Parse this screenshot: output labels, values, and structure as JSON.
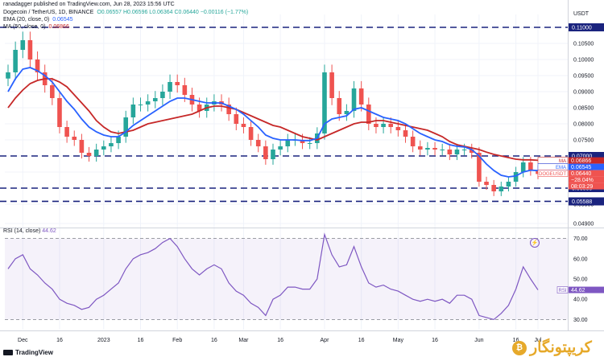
{
  "header": {
    "published": "ranadagger published on TradingView.com, Jun 28, 2023 15:56 UTC",
    "pair": "Dogecoin / TetherUS, 1D, BINANCE",
    "ohlc": "O0.06557 H0.06596 L0.06364 C0.06440 −0.00116 (−1.77%)",
    "ema_label": "EMA (20, close, 0)",
    "ema_value": "0.06545",
    "ma_label": "MA (50, close, 0)",
    "ma_value": "0.06866"
  },
  "axis_unit": "USDT",
  "rsi": {
    "label": "RSI (14, close)",
    "value": "44.62"
  },
  "footer": {
    "logo": "TradingView"
  },
  "brand": {
    "name": "کریپتونگار"
  },
  "colors": {
    "up": "#26a69a",
    "down": "#ef5350",
    "ema": "#2962ff",
    "ma": "#c62828",
    "level": "#1a237e",
    "rsi": "#7e57c2"
  },
  "chart_data": [
    {
      "type": "candlestick",
      "title": "Dogecoin / TetherUS, 1D, BINANCE",
      "ylabel": "USDT",
      "ylim": [
        0.048,
        0.114
      ],
      "y_ticks": [
        "0.04900",
        "0.05500",
        "0.06000",
        "0.06500",
        "0.07000",
        "0.07500",
        "0.08000",
        "0.08500",
        "0.09000",
        "0.09500",
        "0.10000",
        "0.10500",
        "0.11000"
      ],
      "x_ticks": [
        "Dec",
        "16",
        "2023",
        "16",
        "Feb",
        "16",
        "Mar",
        "16",
        "Apr",
        "16",
        "May",
        "16",
        "Jun",
        "16",
        "Jul"
      ],
      "horizontal_levels": [
        {
          "value": 0.11,
          "label": "0.11000"
        },
        {
          "value": 0.07,
          "label": "0.07000"
        },
        {
          "value": 0.06,
          "label": "0.06000"
        },
        {
          "value": 0.05588,
          "label": "0.05588"
        }
      ],
      "price_labels": [
        {
          "tag": "MA",
          "value": "0.06866"
        },
        {
          "tag": "EMA",
          "value": "0.06545"
        },
        {
          "tag": "DOGEUSDT",
          "value": "0.06440"
        },
        {
          "tag": "",
          "value": "−28.04%"
        },
        {
          "tag": "",
          "value": "08:03:29"
        }
      ],
      "series": [
        {
          "name": "DOGEUSDT close",
          "x": [
            "Nov 25",
            "Nov 28",
            "Dec 1",
            "Dec 4",
            "Dec 7",
            "Dec 10",
            "Dec 13",
            "Dec 16",
            "Dec 19",
            "Dec 22",
            "Dec 25",
            "Dec 28",
            "Dec 31",
            "Jan 3",
            "Jan 6",
            "Jan 9",
            "Jan 12",
            "Jan 15",
            "Jan 18",
            "Jan 21",
            "Jan 24",
            "Jan 27",
            "Jan 30",
            "Feb 2",
            "Feb 5",
            "Feb 8",
            "Feb 11",
            "Feb 14",
            "Feb 17",
            "Feb 20",
            "Feb 23",
            "Feb 26",
            "Mar 1",
            "Mar 4",
            "Mar 7",
            "Mar 10",
            "Mar 13",
            "Mar 16",
            "Mar 19",
            "Mar 22",
            "Mar 25",
            "Mar 28",
            "Mar 31",
            "Apr 3",
            "Apr 6",
            "Apr 9",
            "Apr 12",
            "Apr 15",
            "Apr 18",
            "Apr 21",
            "Apr 24",
            "Apr 27",
            "Apr 30",
            "May 3",
            "May 6",
            "May 9",
            "May 12",
            "May 15",
            "May 18",
            "May 21",
            "May 24",
            "May 27",
            "May 30",
            "Jun 2",
            "Jun 5",
            "Jun 8",
            "Jun 11",
            "Jun 14",
            "Jun 17",
            "Jun 20",
            "Jun 23",
            "Jun 26",
            "Jun 28"
          ],
          "values": [
            0.096,
            0.103,
            0.106,
            0.1,
            0.096,
            0.092,
            0.088,
            0.079,
            0.076,
            0.075,
            0.071,
            0.07,
            0.072,
            0.073,
            0.074,
            0.076,
            0.082,
            0.086,
            0.086,
            0.087,
            0.088,
            0.09,
            0.093,
            0.092,
            0.089,
            0.086,
            0.084,
            0.086,
            0.087,
            0.086,
            0.083,
            0.08,
            0.079,
            0.075,
            0.073,
            0.069,
            0.072,
            0.073,
            0.075,
            0.075,
            0.074,
            0.074,
            0.077,
            0.096,
            0.088,
            0.083,
            0.084,
            0.091,
            0.086,
            0.08,
            0.079,
            0.08,
            0.079,
            0.078,
            0.076,
            0.073,
            0.072,
            0.0725,
            0.072,
            0.072,
            0.0705,
            0.072,
            0.072,
            0.071,
            0.062,
            0.061,
            0.059,
            0.0605,
            0.062,
            0.065,
            0.068,
            0.0655,
            0.0644
          ]
        },
        {
          "name": "EMA (20, close, 0)",
          "values": [
            0.09,
            0.094,
            0.097,
            0.0975,
            0.0965,
            0.095,
            0.093,
            0.09,
            0.087,
            0.0845,
            0.0815,
            0.079,
            0.0775,
            0.0765,
            0.076,
            0.076,
            0.0775,
            0.0795,
            0.081,
            0.0825,
            0.084,
            0.0855,
            0.087,
            0.088,
            0.088,
            0.0875,
            0.087,
            0.0865,
            0.0865,
            0.0865,
            0.0855,
            0.0845,
            0.083,
            0.081,
            0.079,
            0.0765,
            0.0755,
            0.075,
            0.075,
            0.075,
            0.0748,
            0.0748,
            0.0755,
            0.08,
            0.0815,
            0.082,
            0.0825,
            0.0845,
            0.085,
            0.084,
            0.083,
            0.082,
            0.0815,
            0.081,
            0.08,
            0.0785,
            0.077,
            0.076,
            0.075,
            0.0745,
            0.0735,
            0.073,
            0.0728,
            0.072,
            0.07,
            0.0675,
            0.0655,
            0.064,
            0.0635,
            0.0638,
            0.065,
            0.0656,
            0.06545
          ]
        },
        {
          "name": "MA (50, close, 0)",
          "values": [
            0.085,
            0.088,
            0.0905,
            0.0925,
            0.0935,
            0.094,
            0.094,
            0.093,
            0.0915,
            0.089,
            0.0865,
            0.084,
            0.081,
            0.079,
            0.0775,
            0.077,
            0.0775,
            0.078,
            0.079,
            0.08,
            0.0805,
            0.081,
            0.0815,
            0.082,
            0.0825,
            0.083,
            0.084,
            0.085,
            0.0855,
            0.0855,
            0.085,
            0.0845,
            0.0835,
            0.0825,
            0.0815,
            0.0805,
            0.0795,
            0.079,
            0.078,
            0.077,
            0.076,
            0.0755,
            0.075,
            0.076,
            0.077,
            0.078,
            0.079,
            0.08,
            0.0805,
            0.0805,
            0.081,
            0.081,
            0.0805,
            0.08,
            0.0795,
            0.079,
            0.0785,
            0.078,
            0.077,
            0.076,
            0.0745,
            0.0735,
            0.073,
            0.0725,
            0.072,
            0.0712,
            0.0705,
            0.07,
            0.0695,
            0.069,
            0.0688,
            0.0688,
            0.06866
          ]
        }
      ]
    },
    {
      "type": "line",
      "title": "RSI (14, close)",
      "ylim": [
        25,
        75
      ],
      "y_ticks": [
        "70.00",
        "60.00",
        "50.00",
        "40.00",
        "30.00"
      ],
      "reference_lines": [
        70,
        30
      ],
      "series": [
        {
          "name": "RSI (14, close)",
          "values": [
            55,
            60,
            62,
            55,
            52,
            48,
            45,
            40,
            38,
            37,
            35,
            36,
            40,
            42,
            45,
            48,
            55,
            60,
            62,
            63,
            65,
            68,
            70,
            66,
            60,
            55,
            52,
            55,
            57,
            55,
            48,
            44,
            42,
            38,
            36,
            32,
            40,
            42,
            46,
            46,
            45,
            45,
            50,
            72,
            62,
            56,
            57,
            66,
            56,
            48,
            46,
            47,
            45,
            44,
            42,
            40,
            39,
            40,
            39,
            40,
            38,
            42,
            42,
            40,
            32,
            31,
            30,
            33,
            37,
            45,
            56,
            50,
            44.62
          ]
        }
      ]
    }
  ]
}
